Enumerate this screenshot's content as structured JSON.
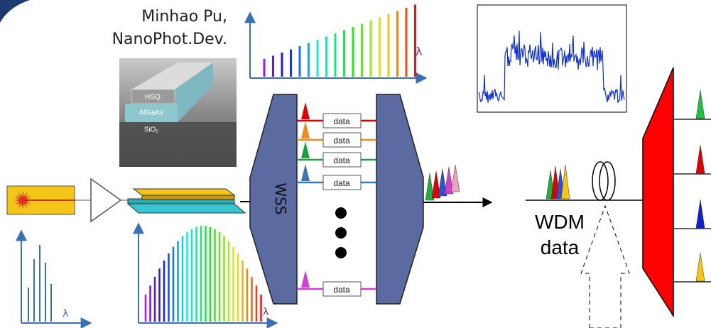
{
  "credit": {
    "line1": "Minhao Pu,",
    "line2": "NanoPhot.Dev."
  },
  "sem_labels": [
    "HSQ",
    "AlGaAs",
    "SiO₂"
  ],
  "wss_label": "WSS",
  "channel_labels": [
    "data",
    "data",
    "data",
    "data",
    "data"
  ],
  "axis_symbols": [
    "λ",
    "λ",
    "λ"
  ],
  "wdm_label": {
    "line1": "WDM",
    "line2": "data"
  }
}
